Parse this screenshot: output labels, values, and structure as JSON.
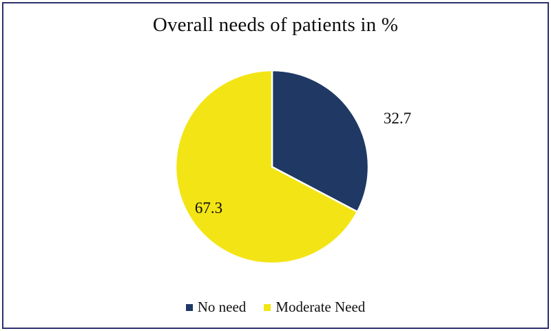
{
  "chart_data": {
    "type": "pie",
    "title": "Overall needs of patients in %",
    "unit": "%",
    "start_angle_deg": -90,
    "direction": "clockwise",
    "legend_position": "bottom",
    "grid": false,
    "slices": [
      {
        "label": "No need",
        "value": 32.7,
        "display": "32.7",
        "color": "#1F3864",
        "label_placement": "outside"
      },
      {
        "label": "Moderate Need",
        "value": 67.3,
        "display": "67.3",
        "color": "#F3E515",
        "label_placement": "inside"
      }
    ]
  },
  "colors": {
    "frame_border": "#2B2E6B",
    "slice_separator": "#FFFFFF",
    "background": "#FFFFFF",
    "text": "#0D0D0D"
  }
}
